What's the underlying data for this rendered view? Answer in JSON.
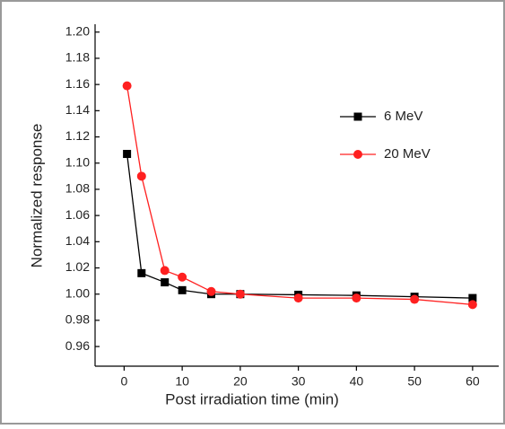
{
  "chart_data": {
    "type": "line",
    "xlabel": "Post irradiation time (min)",
    "ylabel": "Normalized response",
    "x": [
      0.5,
      3,
      7,
      10,
      15,
      20,
      30,
      40,
      50,
      60
    ],
    "series": [
      {
        "name": "6 MeV",
        "color": "#000000",
        "marker": "square",
        "values": [
          1.107,
          1.016,
          1.009,
          1.003,
          1.0,
          1.0,
          0.9995,
          0.999,
          0.998,
          0.997
        ]
      },
      {
        "name": "20 MeV",
        "color": "#ff2020",
        "marker": "circle",
        "values": [
          1.159,
          1.09,
          1.018,
          1.013,
          1.002,
          1.0,
          0.997,
          0.997,
          0.996,
          0.992
        ]
      }
    ],
    "xlim": [
      -5,
      64.5
    ],
    "xticks": [
      0,
      10,
      20,
      30,
      40,
      50,
      60
    ],
    "ylim": [
      0.945,
      1.206
    ],
    "yticks": [
      {
        "value": 0.96,
        "label": "0.96"
      },
      {
        "value": 0.98,
        "label": "0.98"
      },
      {
        "value": 1.0,
        "label": "1.00"
      },
      {
        "value": 1.02,
        "label": "1.02"
      },
      {
        "value": 1.04,
        "label": "1.04"
      },
      {
        "value": 1.06,
        "label": "1.06"
      },
      {
        "value": 1.08,
        "label": "1.08"
      },
      {
        "value": 1.1,
        "label": "1.10"
      },
      {
        "value": 1.12,
        "label": "1.12"
      },
      {
        "value": 1.14,
        "label": "1.14"
      },
      {
        "value": 1.16,
        "label": "1.16"
      },
      {
        "value": 1.18,
        "label": "1.18"
      },
      {
        "value": 1.2,
        "label": "1.20"
      }
    ],
    "grid": false
  }
}
